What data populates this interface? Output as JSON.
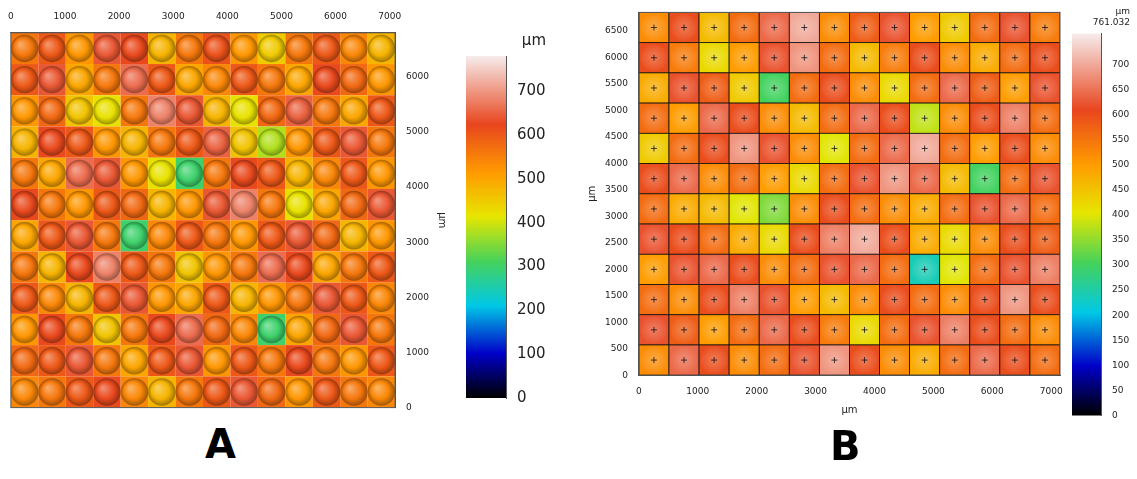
{
  "chart_data": [
    {
      "type": "heatmap",
      "title": "A",
      "y_label": "µm",
      "grid": false,
      "xlim": [
        0,
        7100
      ],
      "ylim": [
        0,
        6800
      ],
      "xticks": [
        0,
        1000,
        2000,
        3000,
        4000,
        5000,
        6000,
        7000
      ],
      "yticks": [
        0,
        1000,
        2000,
        3000,
        4000,
        5000,
        6000
      ],
      "cells": [
        [
          560,
          600,
          520,
          640,
          620,
          480,
          560,
          610,
          520,
          450,
          560,
          600,
          540,
          480
        ],
        [
          600,
          640,
          500,
          560,
          660,
          600,
          500,
          540,
          600,
          560,
          500,
          620,
          580,
          520
        ],
        [
          520,
          580,
          460,
          420,
          560,
          680,
          640,
          480,
          420,
          580,
          650,
          560,
          500,
          600
        ],
        [
          480,
          620,
          600,
          520,
          480,
          560,
          600,
          650,
          460,
          380,
          520,
          600,
          640,
          560
        ],
        [
          560,
          500,
          660,
          640,
          520,
          420,
          300,
          560,
          620,
          600,
          480,
          540,
          600,
          520
        ],
        [
          620,
          560,
          520,
          600,
          580,
          480,
          520,
          640,
          680,
          560,
          420,
          500,
          580,
          640
        ],
        [
          500,
          600,
          640,
          560,
          300,
          540,
          600,
          560,
          520,
          600,
          640,
          580,
          480,
          520
        ],
        [
          560,
          480,
          620,
          680,
          600,
          560,
          460,
          520,
          560,
          660,
          620,
          500,
          560,
          600
        ],
        [
          600,
          540,
          480,
          600,
          640,
          520,
          500,
          600,
          480,
          520,
          560,
          640,
          600,
          540
        ],
        [
          520,
          620,
          560,
          460,
          560,
          620,
          660,
          580,
          540,
          300,
          500,
          580,
          640,
          560
        ],
        [
          580,
          600,
          640,
          560,
          500,
          600,
          640,
          520,
          600,
          560,
          620,
          560,
          520,
          600
        ],
        [
          540,
          560,
          600,
          620,
          540,
          480,
          560,
          600,
          640,
          580,
          520,
          600,
          560,
          540
        ]
      ],
      "colorbar": {
        "title": "µm",
        "range": [
          0,
          780
        ],
        "ticks": [
          0,
          100,
          200,
          300,
          400,
          500,
          600,
          700
        ]
      }
    },
    {
      "type": "heatmap",
      "title": "B",
      "x_label": "µm",
      "y_label": "µm",
      "grid": false,
      "xlim": [
        0,
        7150
      ],
      "ylim": [
        0,
        6850
      ],
      "xticks": [
        0,
        1000,
        2000,
        3000,
        4000,
        5000,
        6000,
        7000
      ],
      "yticks": [
        0,
        500,
        1000,
        1500,
        2000,
        2500,
        3000,
        3500,
        4000,
        4500,
        5000,
        5500,
        6000,
        6500
      ],
      "cells": [
        [
          520,
          600,
          460,
          560,
          640,
          700,
          520,
          580,
          620,
          500,
          440,
          560,
          620,
          540
        ],
        [
          600,
          540,
          420,
          500,
          620,
          680,
          560,
          460,
          540,
          600,
          520,
          480,
          560,
          600
        ],
        [
          480,
          620,
          580,
          440,
          300,
          560,
          600,
          520,
          420,
          560,
          640,
          580,
          500,
          620
        ],
        [
          560,
          500,
          640,
          600,
          520,
          460,
          560,
          640,
          600,
          380,
          520,
          600,
          660,
          560
        ],
        [
          440,
          560,
          600,
          680,
          620,
          520,
          400,
          560,
          640,
          700,
          560,
          500,
          600,
          520
        ],
        [
          600,
          640,
          520,
          560,
          500,
          420,
          560,
          620,
          680,
          640,
          460,
          300,
          560,
          620
        ],
        [
          560,
          480,
          460,
          400,
          340,
          520,
          600,
          560,
          520,
          480,
          560,
          620,
          640,
          560
        ],
        [
          620,
          600,
          560,
          480,
          420,
          600,
          660,
          700,
          600,
          480,
          420,
          520,
          600,
          580
        ],
        [
          500,
          620,
          640,
          600,
          520,
          560,
          620,
          640,
          560,
          240,
          400,
          560,
          620,
          660
        ],
        [
          560,
          520,
          600,
          660,
          620,
          500,
          460,
          520,
          600,
          560,
          520,
          600,
          680,
          600
        ],
        [
          620,
          580,
          500,
          560,
          640,
          600,
          540,
          420,
          560,
          620,
          660,
          600,
          560,
          520
        ],
        [
          520,
          640,
          600,
          520,
          560,
          620,
          680,
          600,
          520,
          480,
          560,
          640,
          600,
          560
        ]
      ],
      "colorbar": {
        "title": "µm",
        "subtitle": "761.032",
        "range": [
          0,
          761.032
        ],
        "ticks": [
          0,
          50,
          100,
          150,
          200,
          250,
          300,
          350,
          400,
          450,
          500,
          550,
          600,
          650,
          700
        ]
      }
    }
  ]
}
